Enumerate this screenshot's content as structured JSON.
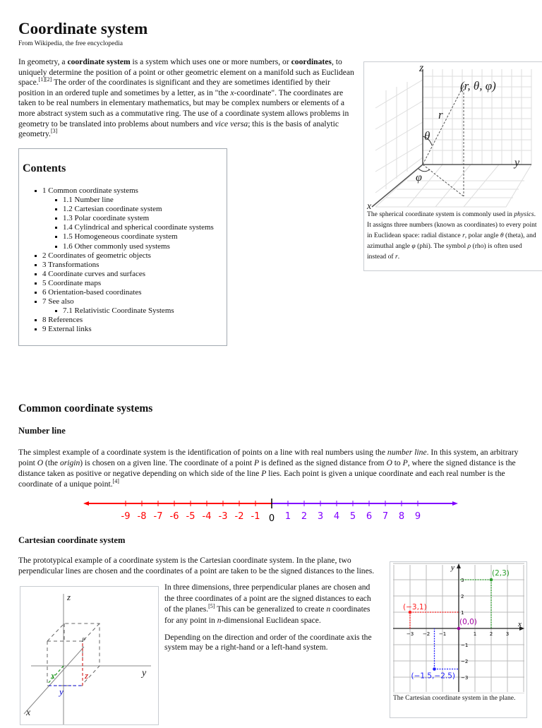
{
  "title": "Coordinate system",
  "subtitle": "From Wikipedia, the free encyclopedia",
  "intro": {
    "t1": "In geometry, a ",
    "b1": "coordinate system",
    "t2": " is a system which uses one or more numbers, or ",
    "b2": "coordinates",
    "t3": ", to uniquely determine the position of a point or other geometric element on a manifold such as Euclidean space.",
    "ref1": "[1]",
    "ref2": "[2]",
    "t4": " The order of the coordinates is significant and they are sometimes identified by their position in an ordered tuple and sometimes by a letter, as in \"the ",
    "i1": "x",
    "t5": "-coordinate\". The coordinates are taken to be real numbers in elementary mathematics, but may be complex numbers or elements of a more abstract system such as a commutative ring. The use of a coordinate system allows problems in geometry to be translated into problems about numbers and ",
    "i2": "vice versa",
    "t6": "; this is the basis of analytic geometry.",
    "ref3": "[3]"
  },
  "spherical_figure": {
    "labels": {
      "z": "z",
      "y": "y",
      "x": "x",
      "point": "(r, θ, φ)",
      "r": "r",
      "theta": "θ",
      "phi": "φ"
    },
    "caption": {
      "t1": "The spherical coordinate system is commonly used in ",
      "i1": "physics",
      "t2": ". It assigns three numbers (known as coordinates) to every point in Euclidean space: radial distance ",
      "i2": "r",
      "t3": ", polar angle ",
      "i3": "θ",
      "t4": " (theta), and azimuthal angle ",
      "i4": "φ",
      "t5": " (phi). The symbol ",
      "i5": "ρ",
      "t6": " (rho) is often used instead of ",
      "i6": "r",
      "t7": "."
    }
  },
  "toc": {
    "heading": "Contents",
    "items": [
      {
        "label": "1 Common coordinate systems",
        "level": 1
      },
      {
        "label": "1.1 Number line",
        "level": 2
      },
      {
        "label": "1.2 Cartesian coordinate system",
        "level": 2
      },
      {
        "label": "1.3 Polar coordinate system",
        "level": 2
      },
      {
        "label": "1.4 Cylindrical and spherical coordinate systems",
        "level": 2
      },
      {
        "label": "1.5 Homogeneous coordinate system",
        "level": 2
      },
      {
        "label": "1.6 Other commonly used systems",
        "level": 2
      },
      {
        "label": "2 Coordinates of geometric objects",
        "level": 1
      },
      {
        "label": "3 Transformations",
        "level": 1
      },
      {
        "label": "4 Coordinate curves and surfaces",
        "level": 1
      },
      {
        "label": "5 Coordinate maps",
        "level": 1
      },
      {
        "label": "6 Orientation-based coordinates",
        "level": 1
      },
      {
        "label": "7 See also",
        "level": 1
      },
      {
        "label": "7.1 Relativistic Coordinate Systems",
        "level": 2
      },
      {
        "label": "8 References",
        "level": 1
      },
      {
        "label": "9 External links",
        "level": 1
      }
    ]
  },
  "section": {
    "heading": "Common coordinate systems"
  },
  "number_line": {
    "heading": "Number line",
    "p": {
      "t1": "The simplest example of a coordinate system is the identification of points on a line with real numbers using the ",
      "i1": "number line",
      "t2": ". In this system, an arbitrary point ",
      "i2": "O",
      "t3": " (the ",
      "i3": "origin",
      "t4": ") is chosen on a given line. The coordinate of a point ",
      "i4": "P",
      "t5": " is defined as the signed distance from ",
      "i5": "O",
      "t6": " to ",
      "i6": "P",
      "t7": ", where the signed distance is the distance taken as positive or negative depending on which side of the line ",
      "i7": "P",
      "t8": " lies. Each point is given a unique coordinate and each real number is the coordinate of a unique point.",
      "ref": "[4]"
    },
    "ticks": [
      "-9",
      "-8",
      "-7",
      "-6",
      "-5",
      "-4",
      "-3",
      "-2",
      "-1",
      "0",
      "1",
      "2",
      "3",
      "4",
      "5",
      "6",
      "7",
      "8",
      "9"
    ],
    "colors": {
      "negative": "#ff0000",
      "positive": "#8000ff",
      "zero": "#000000"
    }
  },
  "cartesian": {
    "heading": "Cartesian coordinate system",
    "p1": "The prototypical example of a coordinate system is the Cartesian coordinate system. In the plane, two perpendicular lines are chosen and the coordinates of a point are taken to be the signed distances to the lines.",
    "p2": {
      "t1": "In three dimensions, three perpendicular planes are chosen and the three coordinates of a point are the signed distances to each of the planes.",
      "ref": "[5]",
      "t2": " This can be generalized to create ",
      "i1": "n",
      "t3": " coordinates for any point in ",
      "i2": "n",
      "t4": "-dimensional Euclidean space."
    },
    "p3": "Depending on the direction and order of the coordinate axis the system may be a right-hand or a left-hand system.",
    "fig3d": {
      "labels": {
        "z": "z",
        "y": "y",
        "x": "x",
        "p": "P",
        "xl": "x",
        "yl": "y",
        "zl": "z"
      }
    },
    "fig2d": {
      "axis_x": "x",
      "axis_y": "y",
      "ticks_x": [
        "−3",
        "−2",
        "−1",
        "1",
        "2",
        "3"
      ],
      "ticks_y": [
        "3",
        "2",
        "1",
        "−1",
        "−2",
        "−3"
      ],
      "points": [
        {
          "label": "(2,3)",
          "x": 2,
          "y": 3,
          "color": "#2ca02c"
        },
        {
          "label": "(−3,1)",
          "x": -3,
          "y": 1,
          "color": "#ff2020"
        },
        {
          "label": "(0,0)",
          "x": 0,
          "y": 0,
          "color": "#a000a0"
        },
        {
          "label": "(−1.5,−2.5)",
          "x": -1.5,
          "y": -2.5,
          "color": "#2020ff"
        }
      ],
      "caption": "The Cartesian coordinate system in the plane."
    }
  }
}
